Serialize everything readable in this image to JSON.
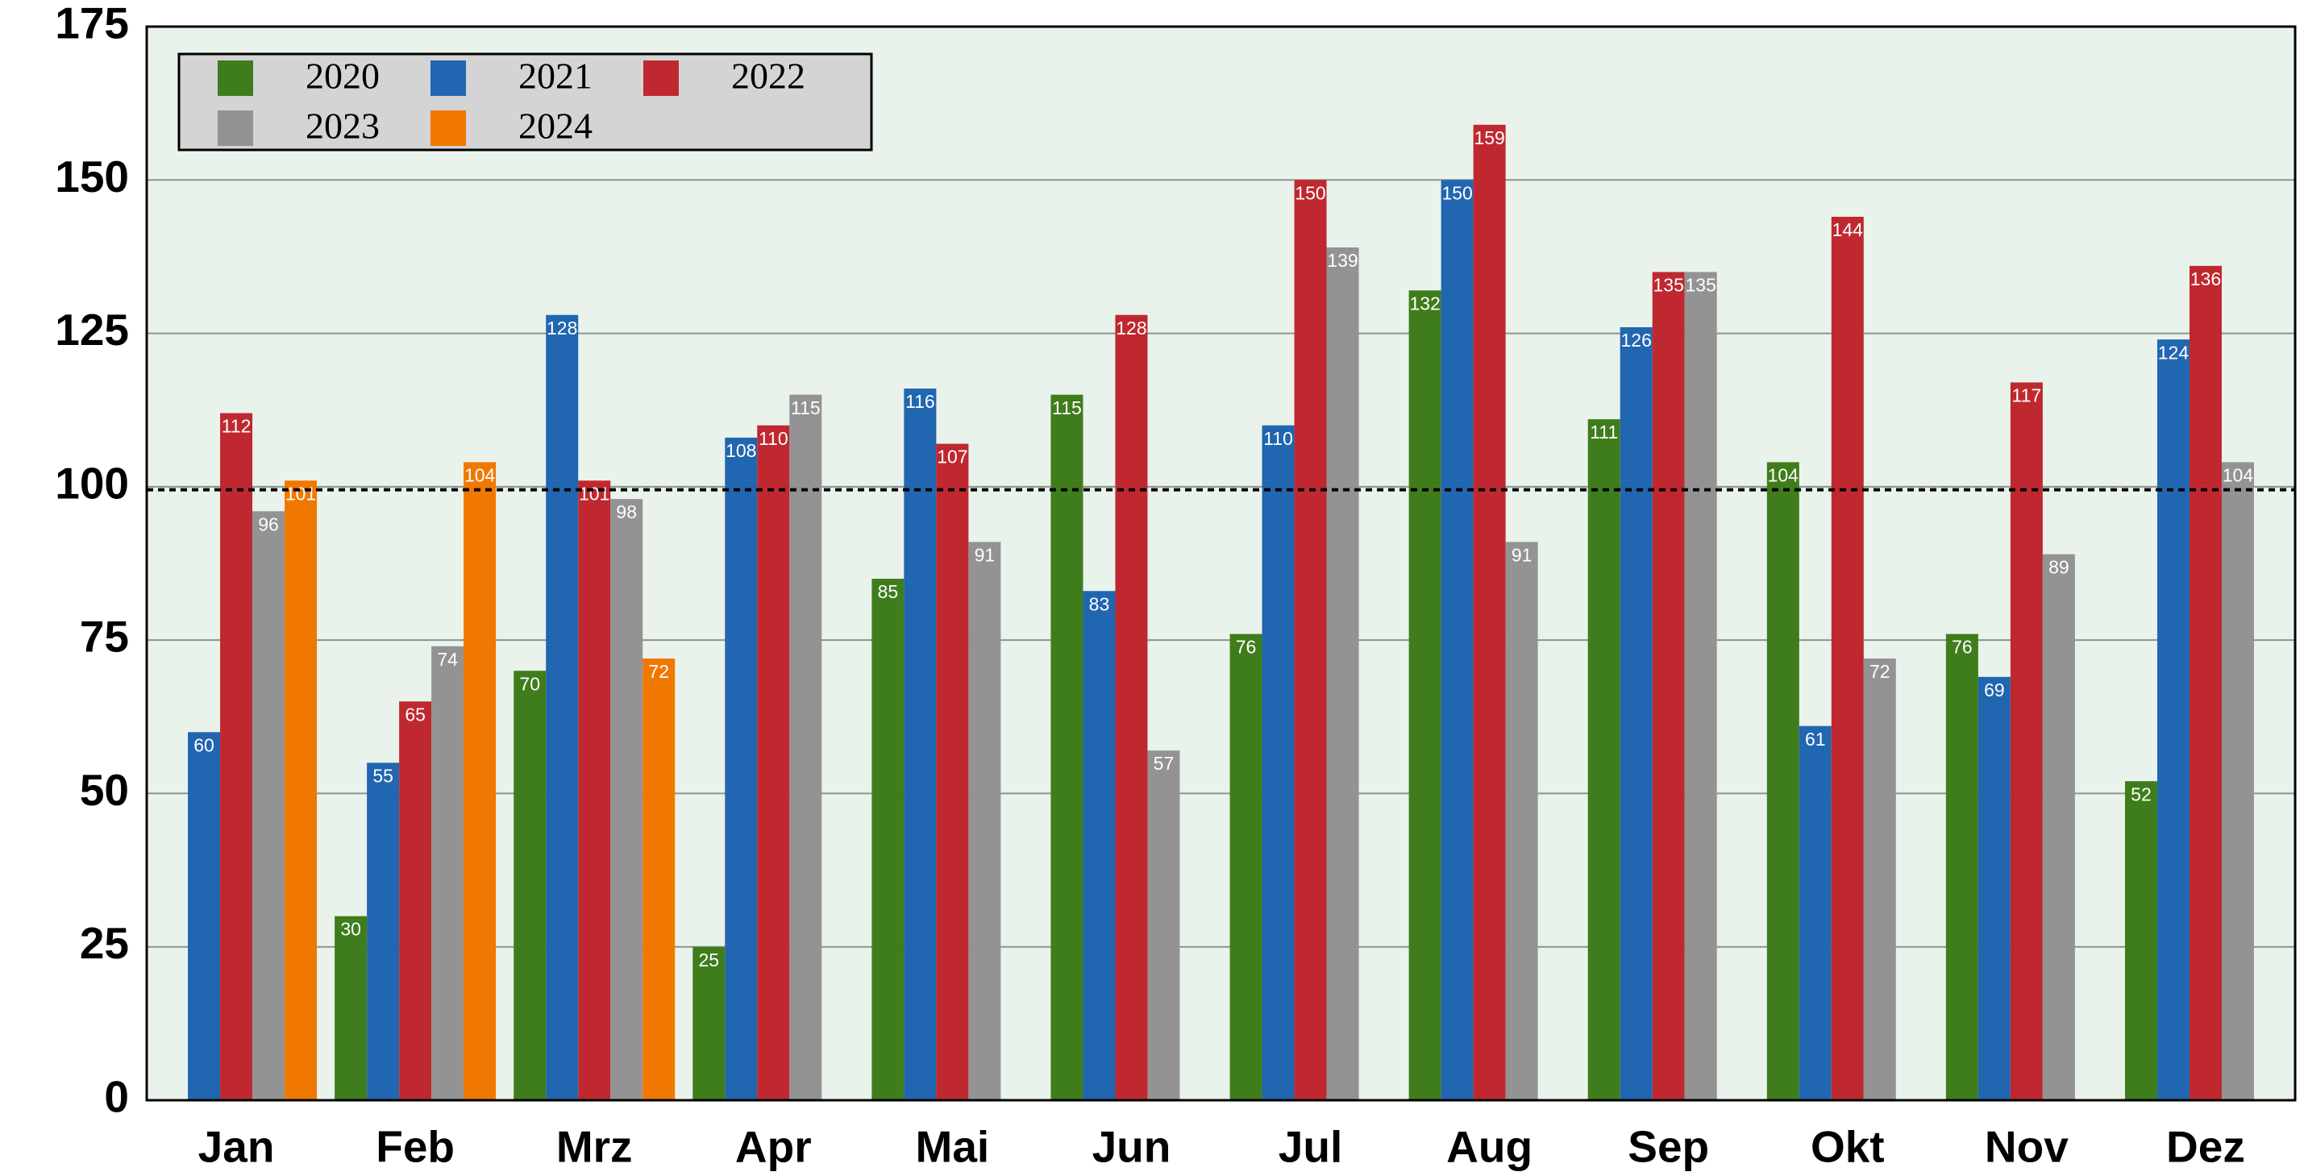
{
  "chart_data": {
    "type": "bar",
    "categories": [
      "Jan",
      "Feb",
      "Mrz",
      "Apr",
      "Mai",
      "Jun",
      "Jul",
      "Aug",
      "Sep",
      "Okt",
      "Nov",
      "Dez"
    ],
    "series": [
      {
        "name": "2020",
        "color": "#3f7d1c",
        "values": [
          null,
          30,
          70,
          25,
          85,
          115,
          76,
          132,
          111,
          104,
          76,
          52
        ]
      },
      {
        "name": "2021",
        "color": "#2166b0",
        "values": [
          60,
          55,
          128,
          108,
          116,
          83,
          110,
          150,
          126,
          61,
          69,
          124
        ]
      },
      {
        "name": "2022",
        "color": "#c0282f",
        "values": [
          112,
          65,
          101,
          110,
          107,
          128,
          150,
          159,
          135,
          144,
          117,
          136
        ]
      },
      {
        "name": "2023",
        "color": "#939393",
        "values": [
          96,
          74,
          98,
          115,
          91,
          57,
          139,
          91,
          135,
          72,
          89,
          104
        ]
      },
      {
        "name": "2024",
        "color": "#f07800",
        "values": [
          101,
          104,
          72,
          null,
          null,
          null,
          null,
          null,
          null,
          null,
          null,
          null
        ]
      }
    ],
    "ylim": [
      0,
      175
    ],
    "yticks": [
      0,
      25,
      50,
      75,
      100,
      125,
      150,
      175
    ],
    "grid": true,
    "reference_line": 99.5,
    "legend": "upper left"
  }
}
